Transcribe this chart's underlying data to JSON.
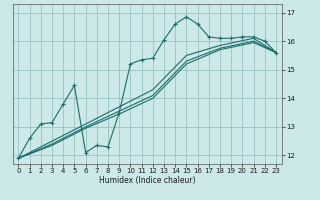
{
  "title": "",
  "xlabel": "Humidex (Indice chaleur)",
  "xlim": [
    -0.5,
    23.5
  ],
  "ylim": [
    11.7,
    17.3
  ],
  "bg_color": "#cce8e8",
  "line_color": "#1a6e6a",
  "grid_color": "#a0c8c8",
  "xticks": [
    0,
    1,
    2,
    3,
    4,
    5,
    6,
    7,
    8,
    9,
    10,
    11,
    12,
    13,
    14,
    15,
    16,
    17,
    18,
    19,
    20,
    21,
    22,
    23
  ],
  "yticks": [
    12,
    13,
    14,
    15,
    16,
    17
  ],
  "line1": [
    [
      0,
      11.9
    ],
    [
      1,
      12.6
    ],
    [
      2,
      13.1
    ],
    [
      3,
      13.15
    ],
    [
      4,
      13.8
    ],
    [
      5,
      14.45
    ],
    [
      6,
      12.1
    ],
    [
      7,
      12.35
    ],
    [
      8,
      12.3
    ],
    [
      9,
      13.5
    ],
    [
      10,
      15.2
    ],
    [
      11,
      15.35
    ],
    [
      12,
      15.4
    ],
    [
      13,
      16.05
    ],
    [
      14,
      16.6
    ],
    [
      15,
      16.85
    ],
    [
      16,
      16.6
    ],
    [
      17,
      16.15
    ],
    [
      18,
      16.1
    ],
    [
      19,
      16.1
    ],
    [
      20,
      16.15
    ],
    [
      21,
      16.15
    ],
    [
      22,
      16.0
    ],
    [
      23,
      15.6
    ]
  ],
  "line2": [
    [
      0,
      11.9
    ],
    [
      3,
      12.5
    ],
    [
      6,
      13.1
    ],
    [
      9,
      13.7
    ],
    [
      12,
      14.3
    ],
    [
      15,
      15.5
    ],
    [
      18,
      15.85
    ],
    [
      21,
      16.1
    ],
    [
      23,
      15.6
    ]
  ],
  "line3": [
    [
      0,
      11.9
    ],
    [
      3,
      12.4
    ],
    [
      6,
      13.0
    ],
    [
      9,
      13.55
    ],
    [
      12,
      14.1
    ],
    [
      15,
      15.3
    ],
    [
      18,
      15.75
    ],
    [
      21,
      16.0
    ],
    [
      23,
      15.6
    ]
  ],
  "line4": [
    [
      0,
      11.9
    ],
    [
      3,
      12.35
    ],
    [
      6,
      12.95
    ],
    [
      9,
      13.45
    ],
    [
      12,
      14.0
    ],
    [
      15,
      15.2
    ],
    [
      18,
      15.7
    ],
    [
      21,
      15.95
    ],
    [
      23,
      15.6
    ]
  ]
}
